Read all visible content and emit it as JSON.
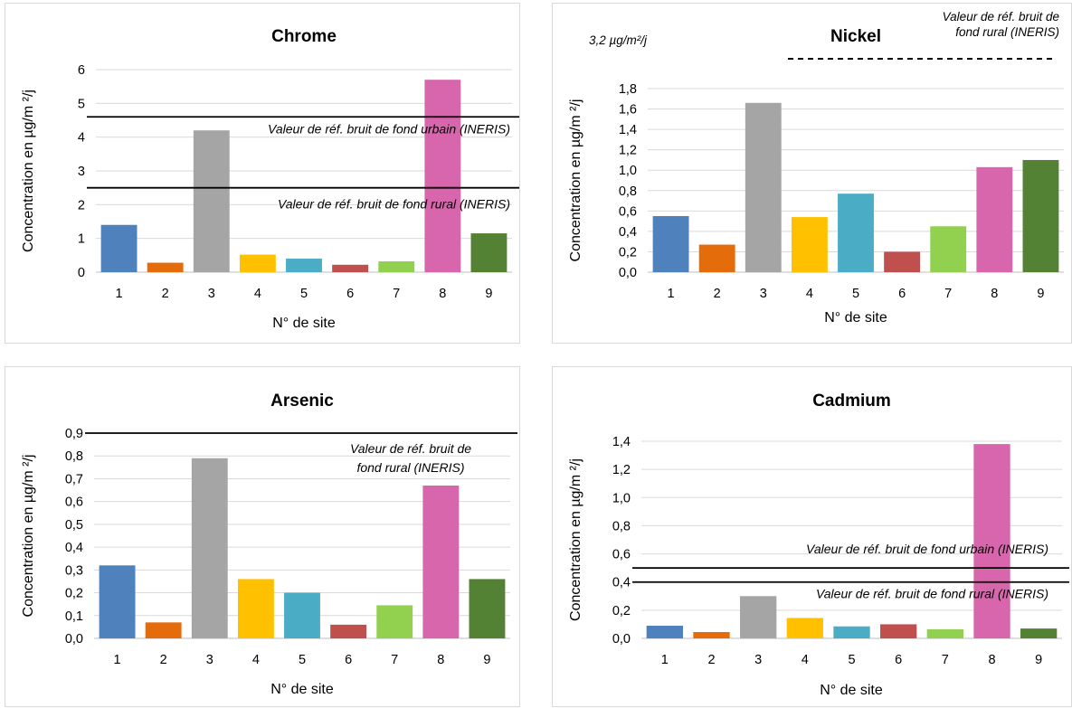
{
  "chart_data": [
    {
      "type": "bar",
      "title": "Chrome",
      "xlabel": "N° de site",
      "ylabel": "Concentration en µg/m ²/j",
      "categories": [
        "1",
        "2",
        "3",
        "4",
        "5",
        "6",
        "7",
        "8",
        "9"
      ],
      "values": [
        1.4,
        0.28,
        4.2,
        0.52,
        0.4,
        0.22,
        0.32,
        5.7,
        1.15
      ],
      "ylim": [
        0,
        6
      ],
      "yticks": [
        "0",
        "1",
        "2",
        "3",
        "4",
        "5",
        "6"
      ],
      "grid": true,
      "reference_lines": [
        {
          "value": 4.6,
          "label": "Valeur de réf. bruit de fond urbain (INERIS)"
        },
        {
          "value": 2.5,
          "label": "Valeur de réf. bruit de fond rural (INERIS)"
        }
      ]
    },
    {
      "type": "bar",
      "title": "Nickel",
      "xlabel": "N° de site",
      "ylabel": "Concentration en µg/m ²/j",
      "categories": [
        "1",
        "2",
        "3",
        "4",
        "5",
        "6",
        "7",
        "8",
        "9"
      ],
      "values": [
        0.55,
        0.27,
        1.66,
        0.54,
        0.77,
        0.2,
        0.45,
        1.03,
        1.1
      ],
      "ylim": [
        0,
        1.8
      ],
      "yticks": [
        "0,0",
        "0,2",
        "0,4",
        "0,6",
        "0,8",
        "1,0",
        "1,2",
        "1,4",
        "1,6",
        "1,8"
      ],
      "grid": true,
      "reference_lines": [
        {
          "value": 3.2,
          "value_label": "3,2 µg/m²/j",
          "label_lines": [
            "Valeur de réf. bruit de",
            "fond rural (INERIS)"
          ],
          "style": "dashed"
        }
      ]
    },
    {
      "type": "bar",
      "title": "Arsenic",
      "xlabel": "N° de site",
      "ylabel": "Concentration en µg/m ²/j",
      "categories": [
        "1",
        "2",
        "3",
        "4",
        "5",
        "6",
        "7",
        "8",
        "9"
      ],
      "values": [
        0.32,
        0.07,
        0.79,
        0.26,
        0.2,
        0.06,
        0.145,
        0.67,
        0.26
      ],
      "ylim": [
        0,
        0.9
      ],
      "yticks": [
        "0,0",
        "0,1",
        "0,2",
        "0,3",
        "0,4",
        "0,5",
        "0,6",
        "0,7",
        "0,8",
        "0,9"
      ],
      "grid": true,
      "reference_lines": [
        {
          "value": 0.9,
          "label_lines": [
            "Valeur de réf. bruit de",
            "fond rural (INERIS)"
          ]
        }
      ]
    },
    {
      "type": "bar",
      "title": "Cadmium",
      "xlabel": "N° de site",
      "ylabel": "Concentration en µg/m ²/j",
      "categories": [
        "1",
        "2",
        "3",
        "4",
        "5",
        "6",
        "7",
        "8",
        "9"
      ],
      "values": [
        0.09,
        0.045,
        0.3,
        0.145,
        0.085,
        0.1,
        0.065,
        1.38,
        0.07
      ],
      "ylim": [
        0,
        1.4
      ],
      "yticks": [
        "0,0",
        "0,2",
        "0,4",
        "0,6",
        "0,8",
        "1,0",
        "1,2",
        "1,4"
      ],
      "grid": true,
      "reference_lines": [
        {
          "value": 0.5,
          "label": "Valeur de réf. bruit de fond urbain (INERIS)"
        },
        {
          "value": 0.4,
          "label": "Valeur de réf. bruit de fond rural (INERIS)"
        }
      ]
    }
  ],
  "colors": [
    "#4f81bd",
    "#e46c0a",
    "#a5a5a5",
    "#ffc000",
    "#4bacc6",
    "#c0504d",
    "#92d050",
    "#d766ac",
    "#548235"
  ]
}
